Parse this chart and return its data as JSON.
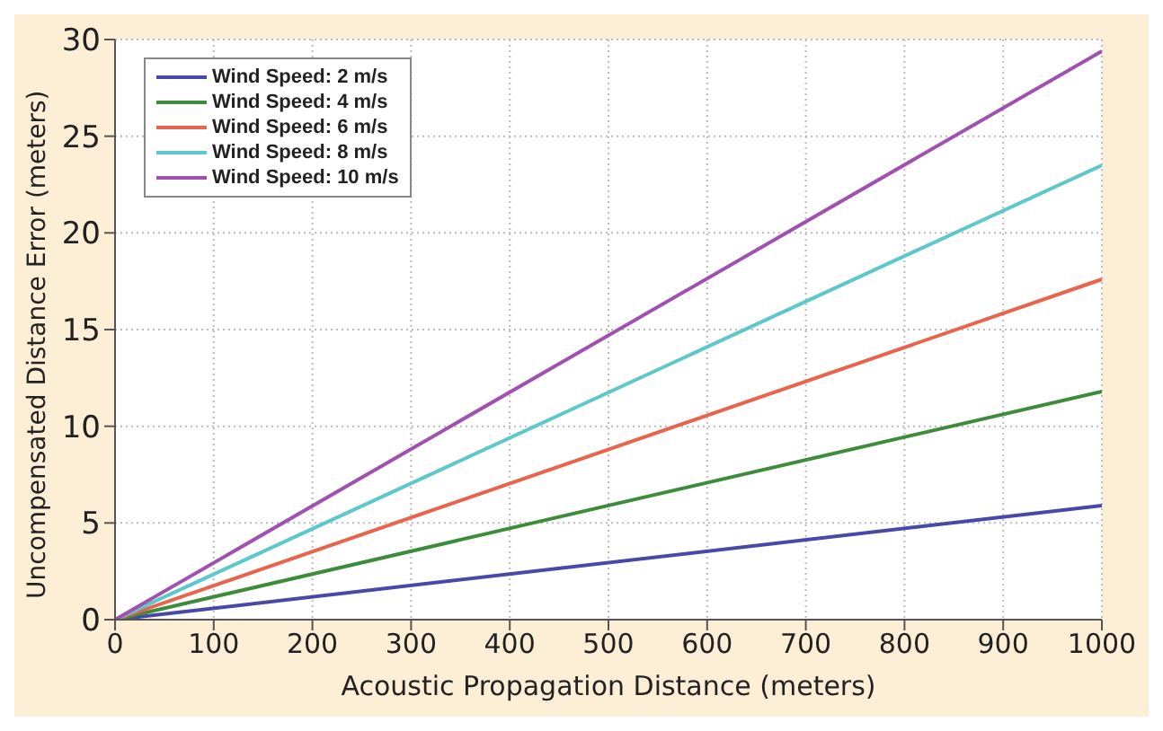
{
  "chart_data": {
    "type": "line",
    "xlabel": "Acoustic Propagation Distance (meters)",
    "ylabel": "Uncompensated Distance Error (meters)",
    "x": [
      0,
      1000
    ],
    "series": [
      {
        "name": "Wind Speed: 2 m/s",
        "color": "#4848a8",
        "values": [
          0,
          5.9
        ]
      },
      {
        "name": "Wind Speed: 4 m/s",
        "color": "#3c8c3c",
        "values": [
          0,
          11.8
        ]
      },
      {
        "name": "Wind Speed: 6 m/s",
        "color": "#e8644c",
        "values": [
          0,
          17.6
        ]
      },
      {
        "name": "Wind Speed: 8 m/s",
        "color": "#5cc8cc",
        "values": [
          0,
          23.5
        ]
      },
      {
        "name": "Wind Speed: 10 m/s",
        "color": "#a050b0",
        "values": [
          0,
          29.4
        ]
      }
    ],
    "xlim": [
      0,
      1000
    ],
    "xticks": [
      0,
      100,
      200,
      300,
      400,
      500,
      600,
      700,
      800,
      900,
      1000
    ],
    "ylim": [
      0,
      30
    ],
    "yticks": [
      0,
      5,
      10,
      15,
      20,
      25,
      30
    ],
    "grid": true,
    "legend": "top left",
    "marker": "none",
    "line_style": "solid"
  }
}
